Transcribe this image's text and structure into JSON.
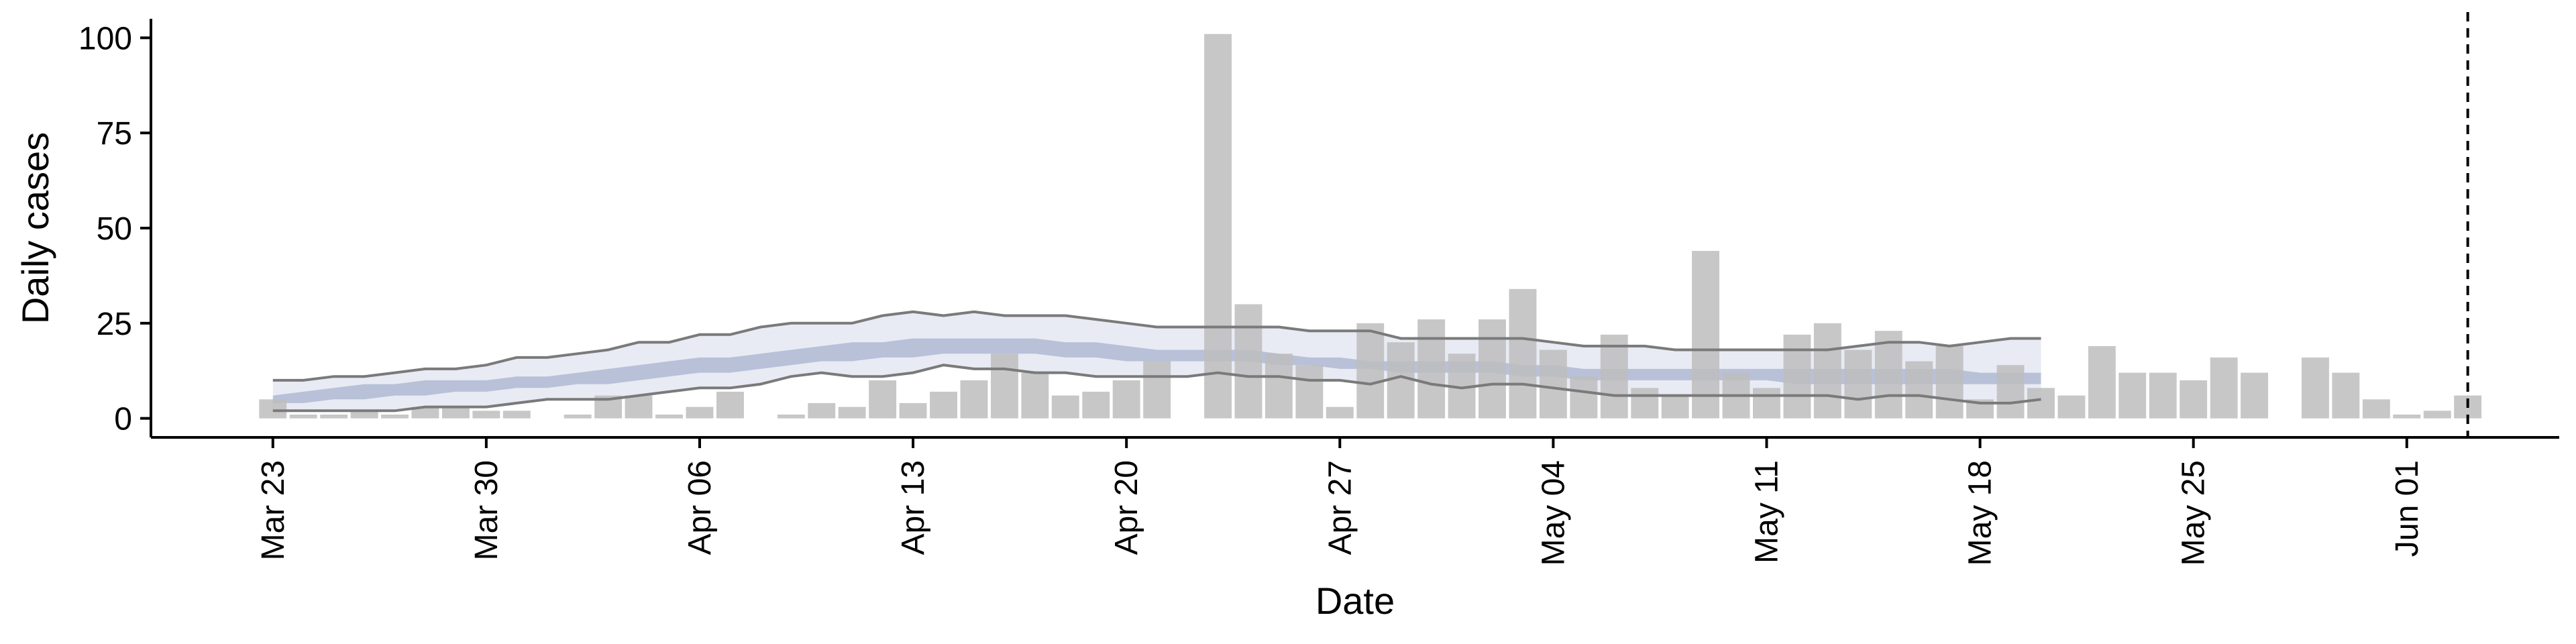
{
  "chart_data": {
    "type": "bar",
    "title": "",
    "xlabel": "Date",
    "ylabel": "Daily cases",
    "ylim": [
      -5,
      105
    ],
    "xlim": [
      "2020-03-19",
      "2020-06-06"
    ],
    "yticks": [
      0,
      25,
      50,
      75,
      100
    ],
    "ytick_labels": [
      "0",
      "25",
      "50",
      "75",
      "100"
    ],
    "xticks": [
      "2020-03-23",
      "2020-03-30",
      "2020-04-06",
      "2020-04-13",
      "2020-04-20",
      "2020-04-27",
      "2020-05-04",
      "2020-05-11",
      "2020-05-18",
      "2020-05-25",
      "2020-06-01"
    ],
    "xtick_labels": [
      "Mar 23",
      "Mar 30",
      "Apr 06",
      "Apr 13",
      "Apr 20",
      "Apr 27",
      "May 04",
      "May 11",
      "May 18",
      "May 25",
      "Jun 01"
    ],
    "grid": false,
    "legend": "none",
    "colors": {
      "bars": "#bdbdbd",
      "band": "#c5cbe0",
      "band_outer": "#e4e7f1",
      "band_inner": "#a9b3d0",
      "bound_line": "#7a7a7a",
      "vline": "#000000"
    },
    "vline_date": "2020-06-03",
    "daily_cases": {
      "start_date": "2020-03-23",
      "values": [
        5,
        1,
        1,
        2,
        1,
        3,
        3,
        2,
        2,
        null,
        1,
        6,
        6,
        1,
        3,
        7,
        null,
        1,
        4,
        3,
        10,
        4,
        7,
        10,
        17,
        12,
        6,
        7,
        10,
        15,
        null,
        101,
        30,
        17,
        14,
        3,
        25,
        20,
        26,
        17,
        26,
        34,
        18,
        11,
        22,
        8,
        6,
        44,
        12,
        8,
        22,
        25,
        18,
        23,
        15,
        19,
        5,
        14,
        8,
        6,
        19,
        12,
        12,
        10,
        16,
        12,
        null,
        16,
        12,
        5,
        1,
        2,
        6
      ]
    },
    "estimate_band": {
      "start_date": "2020-03-23",
      "upper": [
        10,
        10,
        11,
        11,
        12,
        13,
        13,
        14,
        16,
        16,
        17,
        18,
        20,
        20,
        22,
        22,
        24,
        25,
        25,
        25,
        27,
        28,
        27,
        28,
        27,
        27,
        27,
        26,
        25,
        24,
        24,
        24,
        24,
        24,
        23,
        23,
        23,
        21,
        21,
        21,
        21,
        21,
        20,
        19,
        19,
        19,
        18,
        18,
        18,
        18,
        18,
        18,
        19,
        20,
        20,
        19,
        20,
        21,
        21
      ],
      "lower": [
        2,
        2,
        2,
        2,
        2,
        3,
        3,
        3,
        4,
        5,
        5,
        5,
        6,
        7,
        8,
        8,
        9,
        11,
        12,
        11,
        11,
        12,
        14,
        13,
        13,
        12,
        12,
        11,
        11,
        11,
        11,
        12,
        11,
        11,
        10,
        10,
        9,
        11,
        9,
        8,
        9,
        9,
        8,
        7,
        6,
        6,
        6,
        6,
        6,
        6,
        6,
        6,
        5,
        6,
        6,
        5,
        4,
        4,
        5
      ],
      "inner_upper": [
        6,
        7,
        8,
        9,
        9,
        10,
        10,
        10,
        11,
        11,
        12,
        13,
        14,
        15,
        16,
        16,
        17,
        18,
        19,
        20,
        20,
        21,
        21,
        21,
        21,
        21,
        20,
        20,
        19,
        18,
        18,
        18,
        18,
        17,
        16,
        16,
        15,
        15,
        15,
        15,
        15,
        14,
        14,
        13,
        13,
        13,
        13,
        13,
        13,
        13,
        13,
        13,
        13,
        13,
        13,
        13,
        12,
        12,
        12
      ],
      "inner_lower": [
        4,
        4,
        5,
        5,
        6,
        6,
        7,
        7,
        8,
        8,
        9,
        9,
        10,
        11,
        12,
        12,
        13,
        14,
        15,
        15,
        16,
        16,
        17,
        17,
        17,
        17,
        16,
        16,
        15,
        15,
        15,
        15,
        15,
        14,
        14,
        13,
        13,
        12,
        12,
        12,
        12,
        11,
        11,
        10,
        10,
        10,
        10,
        10,
        10,
        10,
        9,
        9,
        9,
        9,
        9,
        9,
        9,
        9,
        9
      ]
    }
  }
}
